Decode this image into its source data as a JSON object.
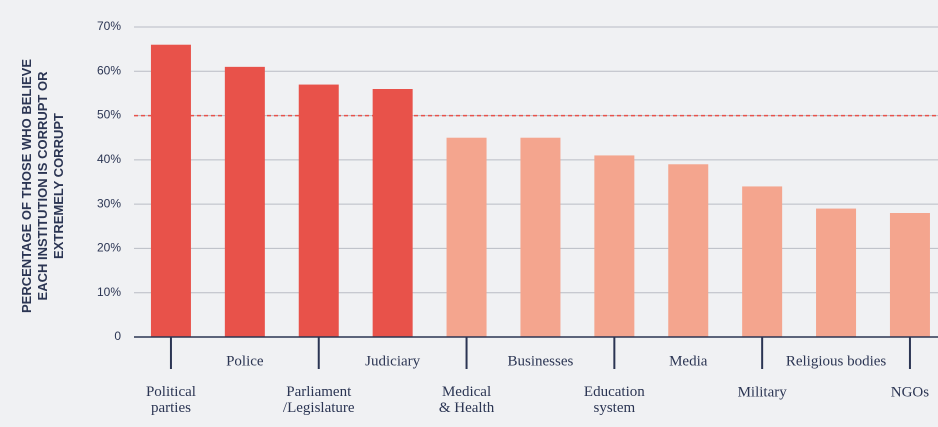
{
  "chart_data": {
    "type": "bar",
    "y_label": "PERCENTAGE OF THOSE WHO BELIEVE\nEACH INSTITUTION IS CORRUPT OR\nEXTREMELY CORRUPT",
    "categories": [
      "Political\nparties",
      "Police",
      "Parliament\n/Legislature",
      "Judiciary",
      "Medical\n& Health",
      "Businesses",
      "Education\nsystem",
      "Media",
      "Military",
      "Religious bodies",
      "NGOs"
    ],
    "values": [
      66,
      61,
      57,
      56,
      45,
      45,
      41,
      39,
      34,
      29,
      28
    ],
    "colors": [
      "#e8524a",
      "#e8524a",
      "#e8524a",
      "#e8524a",
      "#f4a58e",
      "#f4a58e",
      "#f4a58e",
      "#f4a58e",
      "#f4a58e",
      "#f4a58e",
      "#f4a58e"
    ],
    "ylim": [
      0,
      70
    ],
    "yticks": [
      0,
      {
        "value": 10,
        "label": "10%"
      },
      {
        "value": 20,
        "label": "20%"
      },
      {
        "value": 30,
        "label": "30%"
      },
      {
        "value": 40,
        "label": "40%"
      },
      {
        "value": 50,
        "label": "50%"
      },
      {
        "value": 60,
        "label": "60%"
      },
      {
        "value": 70,
        "label": "70%"
      }
    ],
    "grid": true,
    "reference_line": {
      "value": 50,
      "color": "#e8524a",
      "style": "dashed"
    }
  }
}
